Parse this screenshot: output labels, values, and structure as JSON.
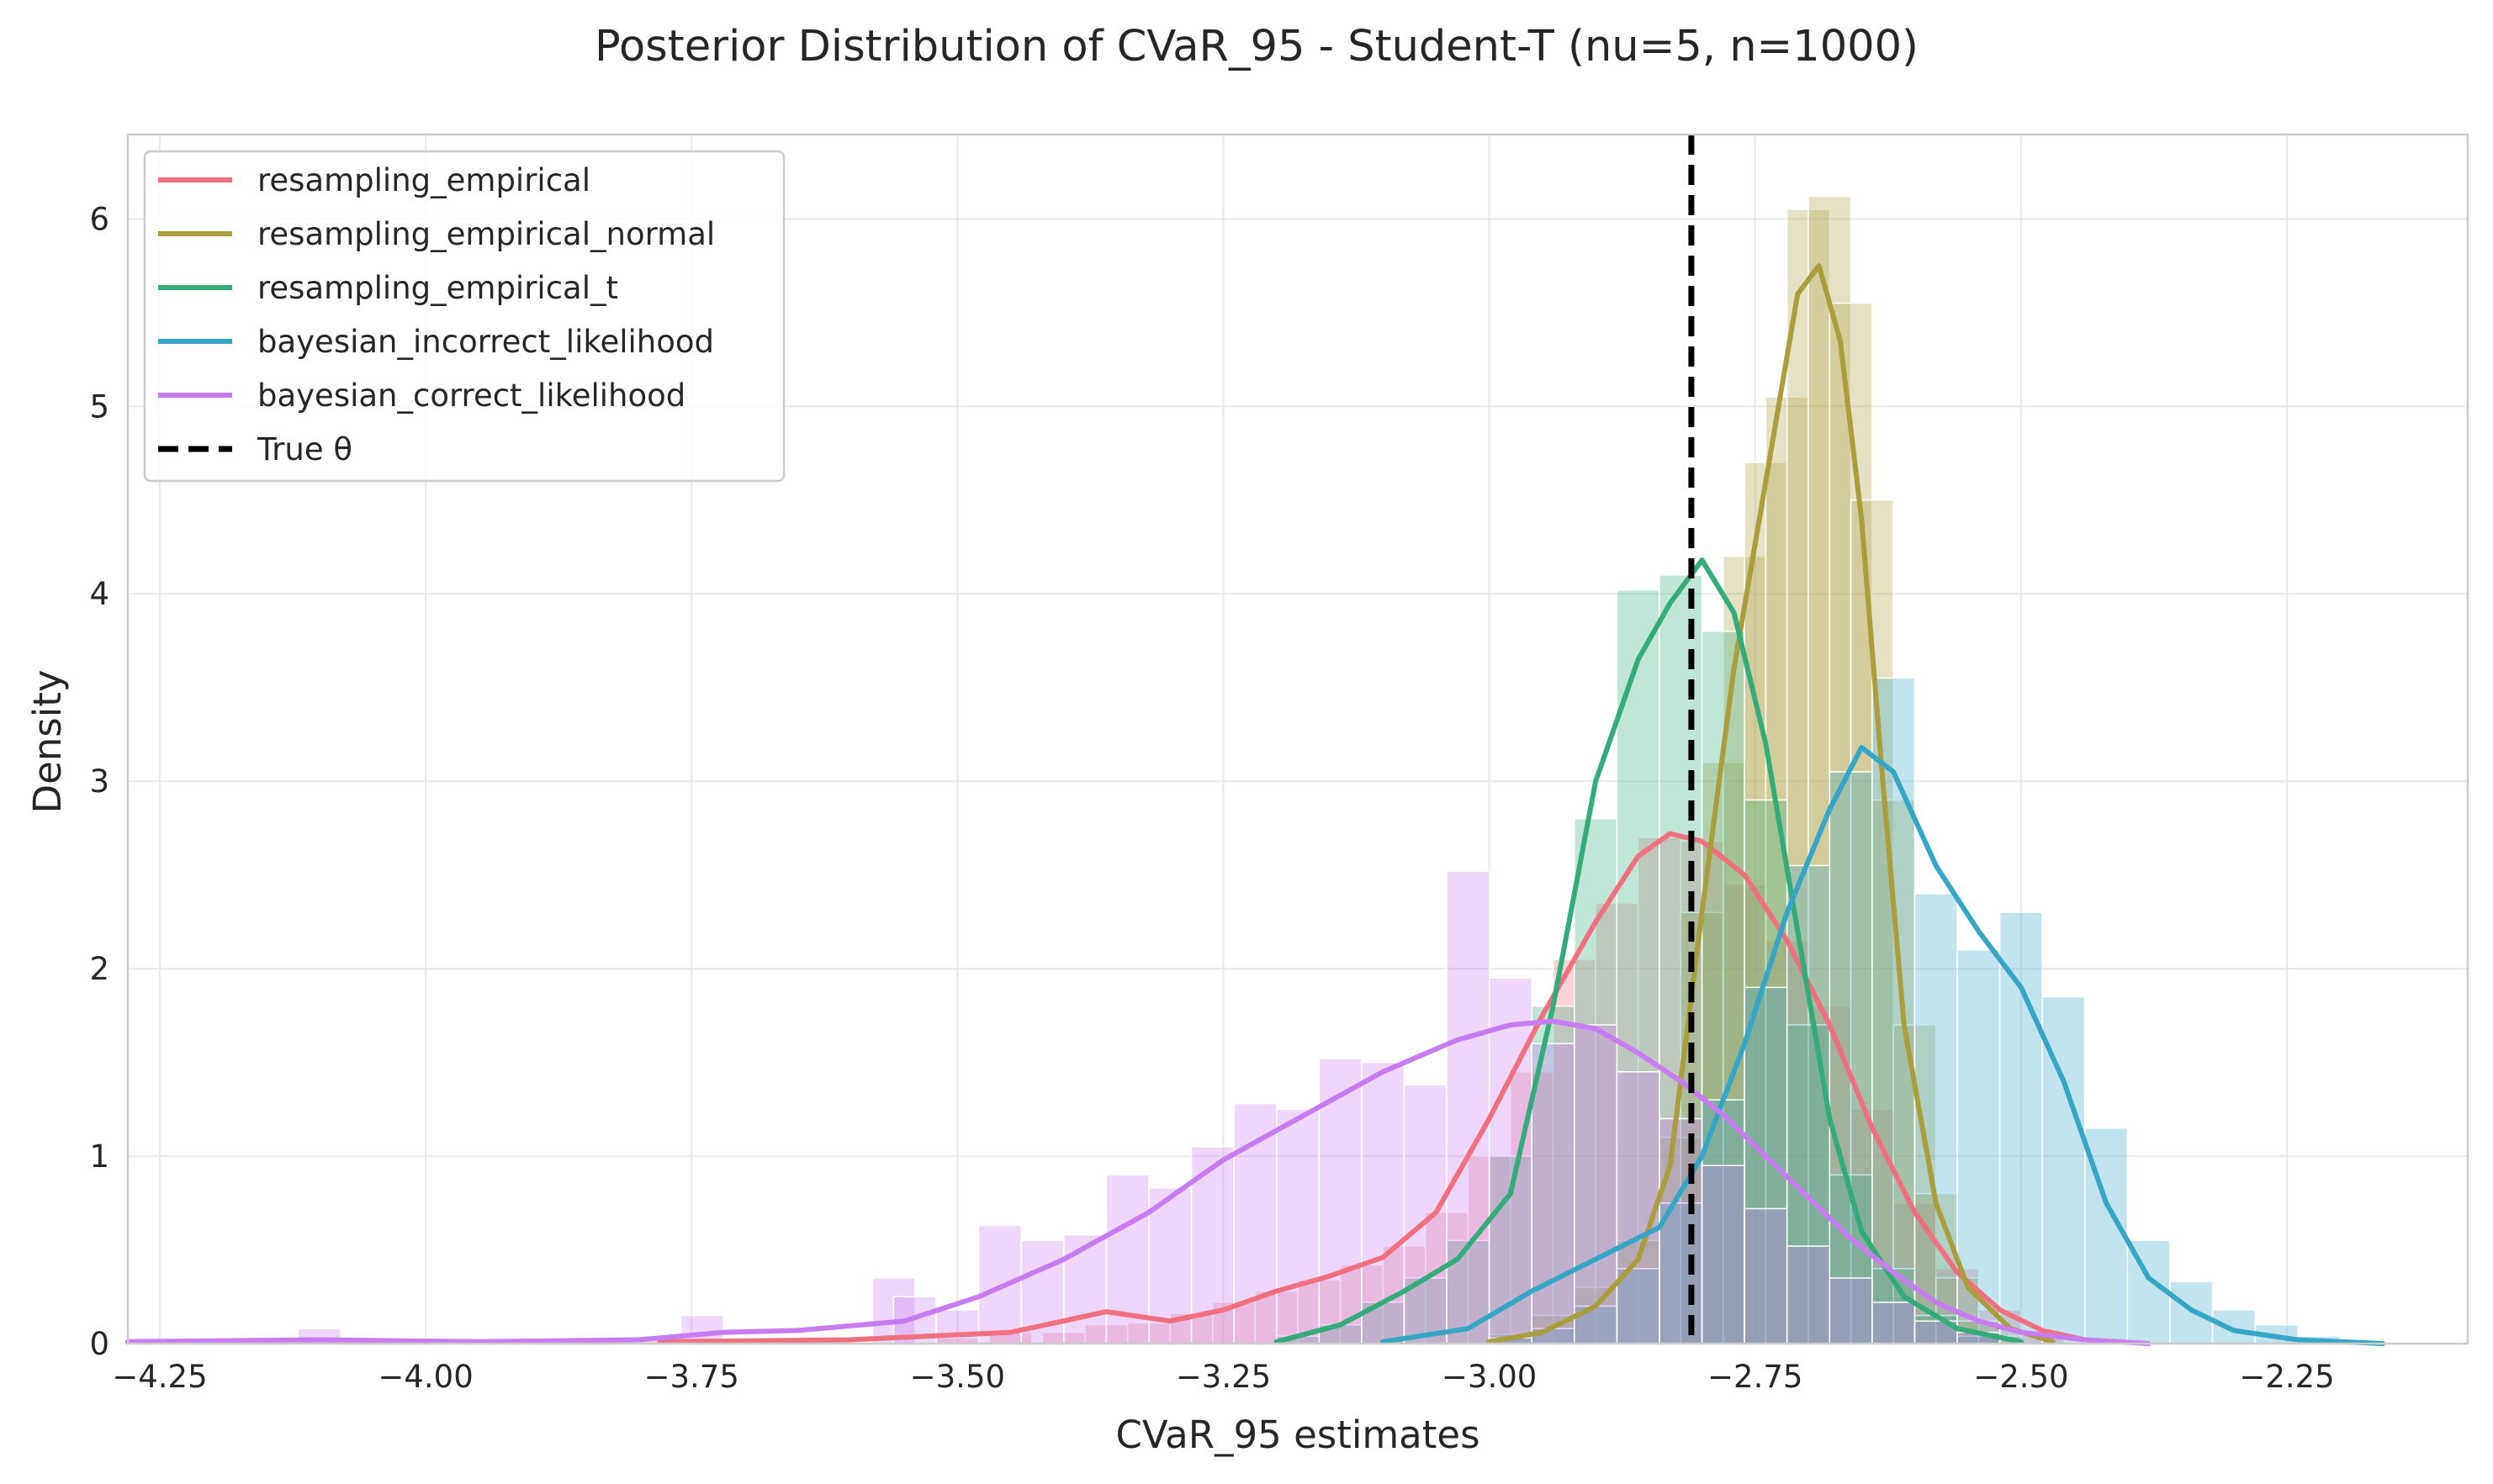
{
  "chart_data": {
    "type": "histogram+kde",
    "title": "Posterior Distribution of CVaR_95 - Student-T (nu=5, n=1000)",
    "xlabel": "CVaR_95 estimates",
    "ylabel": "Density",
    "xlim": [
      -4.28,
      -2.08
    ],
    "ylim": [
      0,
      6.45
    ],
    "xticks": [
      -4.25,
      -4.0,
      -3.75,
      -3.5,
      -3.25,
      -3.0,
      -2.75,
      -2.5,
      -2.25
    ],
    "xtick_labels": [
      "−4.25",
      "−4.00",
      "−3.75",
      "−3.50",
      "−3.25",
      "−3.00",
      "−2.75",
      "−2.50",
      "−2.25"
    ],
    "yticks": [
      0,
      1,
      2,
      3,
      4,
      5,
      6
    ],
    "ytick_labels": [
      "0",
      "1",
      "2",
      "3",
      "4",
      "5",
      "6"
    ],
    "grid": true,
    "legend_position": "upper-left",
    "true_theta": {
      "label": "True θ",
      "x": -2.81,
      "color": "#000000",
      "style": "dashed"
    },
    "series": [
      {
        "name": "resampling_empirical",
        "color": "#f0707f",
        "hist_bins": [
          [
            -3.78,
            0.02
          ],
          [
            -3.5,
            0.03
          ],
          [
            -3.45,
            0.06
          ],
          [
            -3.4,
            0.06
          ],
          [
            -3.36,
            0.1
          ],
          [
            -3.32,
            0.11
          ],
          [
            -3.28,
            0.16
          ],
          [
            -3.24,
            0.22
          ],
          [
            -3.2,
            0.28
          ],
          [
            -3.16,
            0.34
          ],
          [
            -3.12,
            0.42
          ],
          [
            -3.08,
            0.52
          ],
          [
            -3.04,
            0.7
          ],
          [
            -3.0,
            1.0
          ],
          [
            -2.96,
            1.45
          ],
          [
            -2.92,
            2.05
          ],
          [
            -2.88,
            2.35
          ],
          [
            -2.84,
            2.7
          ],
          [
            -2.8,
            2.68
          ],
          [
            -2.76,
            2.45
          ],
          [
            -2.72,
            2.15
          ],
          [
            -2.68,
            1.8
          ],
          [
            -2.64,
            1.25
          ],
          [
            -2.6,
            0.75
          ],
          [
            -2.56,
            0.4
          ],
          [
            -2.52,
            0.18
          ],
          [
            -2.48,
            0.06
          ]
        ],
        "kde": [
          [
            -3.78,
            0.01
          ],
          [
            -3.6,
            0.02
          ],
          [
            -3.45,
            0.06
          ],
          [
            -3.36,
            0.17
          ],
          [
            -3.3,
            0.12
          ],
          [
            -3.25,
            0.18
          ],
          [
            -3.2,
            0.28
          ],
          [
            -3.15,
            0.36
          ],
          [
            -3.1,
            0.46
          ],
          [
            -3.05,
            0.7
          ],
          [
            -3.0,
            1.2
          ],
          [
            -2.95,
            1.75
          ],
          [
            -2.9,
            2.25
          ],
          [
            -2.86,
            2.6
          ],
          [
            -2.83,
            2.72
          ],
          [
            -2.8,
            2.68
          ],
          [
            -2.76,
            2.5
          ],
          [
            -2.72,
            2.15
          ],
          [
            -2.68,
            1.7
          ],
          [
            -2.64,
            1.15
          ],
          [
            -2.6,
            0.7
          ],
          [
            -2.56,
            0.38
          ],
          [
            -2.52,
            0.18
          ],
          [
            -2.48,
            0.07
          ],
          [
            -2.44,
            0.02
          ]
        ]
      },
      {
        "name": "resampling_empirical_normal",
        "color": "#a99d3c",
        "hist_bins": [
          [
            -2.98,
            0.05
          ],
          [
            -2.94,
            0.15
          ],
          [
            -2.9,
            0.3
          ],
          [
            -2.86,
            0.55
          ],
          [
            -2.82,
            1.1
          ],
          [
            -2.8,
            2.3
          ],
          [
            -2.78,
            3.1
          ],
          [
            -2.76,
            4.2
          ],
          [
            -2.74,
            4.7
          ],
          [
            -2.72,
            5.05
          ],
          [
            -2.7,
            6.05
          ],
          [
            -2.68,
            6.12
          ],
          [
            -2.66,
            5.55
          ],
          [
            -2.64,
            4.5
          ],
          [
            -2.62,
            2.9
          ],
          [
            -2.6,
            1.7
          ],
          [
            -2.58,
            0.8
          ],
          [
            -2.56,
            0.35
          ],
          [
            -2.54,
            0.12
          ],
          [
            -2.52,
            0.04
          ]
        ],
        "kde": [
          [
            -3.0,
            0.01
          ],
          [
            -2.95,
            0.06
          ],
          [
            -2.9,
            0.2
          ],
          [
            -2.86,
            0.45
          ],
          [
            -2.83,
            0.95
          ],
          [
            -2.8,
            2.3
          ],
          [
            -2.77,
            3.6
          ],
          [
            -2.74,
            4.6
          ],
          [
            -2.71,
            5.6
          ],
          [
            -2.69,
            5.75
          ],
          [
            -2.67,
            5.35
          ],
          [
            -2.65,
            4.4
          ],
          [
            -2.63,
            3.0
          ],
          [
            -2.61,
            1.7
          ],
          [
            -2.58,
            0.75
          ],
          [
            -2.55,
            0.3
          ],
          [
            -2.51,
            0.08
          ],
          [
            -2.47,
            0.01
          ]
        ]
      },
      {
        "name": "resampling_empirical_t",
        "color": "#33ac7a",
        "hist_bins": [
          [
            -3.18,
            0.04
          ],
          [
            -3.14,
            0.1
          ],
          [
            -3.1,
            0.22
          ],
          [
            -3.06,
            0.35
          ],
          [
            -3.02,
            0.55
          ],
          [
            -2.98,
            1.0
          ],
          [
            -2.94,
            1.8
          ],
          [
            -2.9,
            2.8
          ],
          [
            -2.86,
            4.02
          ],
          [
            -2.82,
            4.1
          ],
          [
            -2.78,
            3.8
          ],
          [
            -2.74,
            2.9
          ],
          [
            -2.7,
            1.7
          ],
          [
            -2.66,
            0.9
          ],
          [
            -2.62,
            0.4
          ],
          [
            -2.58,
            0.15
          ],
          [
            -2.54,
            0.04
          ]
        ],
        "kde": [
          [
            -3.2,
            0.01
          ],
          [
            -3.14,
            0.1
          ],
          [
            -3.08,
            0.28
          ],
          [
            -3.03,
            0.45
          ],
          [
            -2.98,
            0.8
          ],
          [
            -2.94,
            1.8
          ],
          [
            -2.9,
            3.0
          ],
          [
            -2.86,
            3.65
          ],
          [
            -2.83,
            3.95
          ],
          [
            -2.8,
            4.18
          ],
          [
            -2.77,
            3.9
          ],
          [
            -2.74,
            3.2
          ],
          [
            -2.71,
            2.2
          ],
          [
            -2.68,
            1.2
          ],
          [
            -2.65,
            0.6
          ],
          [
            -2.61,
            0.25
          ],
          [
            -2.56,
            0.08
          ],
          [
            -2.5,
            0.01
          ]
        ]
      },
      {
        "name": "bayesian_incorrect_likelihood",
        "color": "#36a6c6",
        "hist_bins": [
          [
            -2.98,
            0.03
          ],
          [
            -2.94,
            0.08
          ],
          [
            -2.9,
            0.2
          ],
          [
            -2.86,
            0.4
          ],
          [
            -2.82,
            0.75
          ],
          [
            -2.78,
            1.3
          ],
          [
            -2.74,
            1.9
          ],
          [
            -2.7,
            2.55
          ],
          [
            -2.66,
            3.05
          ],
          [
            -2.62,
            3.55
          ],
          [
            -2.58,
            2.4
          ],
          [
            -2.54,
            2.1
          ],
          [
            -2.5,
            2.3
          ],
          [
            -2.46,
            1.85
          ],
          [
            -2.42,
            1.15
          ],
          [
            -2.38,
            0.55
          ],
          [
            -2.34,
            0.33
          ],
          [
            -2.3,
            0.18
          ],
          [
            -2.26,
            0.1
          ],
          [
            -2.22,
            0.04
          ]
        ],
        "kde": [
          [
            -3.1,
            0.01
          ],
          [
            -3.02,
            0.08
          ],
          [
            -2.96,
            0.28
          ],
          [
            -2.9,
            0.45
          ],
          [
            -2.84,
            0.62
          ],
          [
            -2.8,
            1.0
          ],
          [
            -2.76,
            1.6
          ],
          [
            -2.72,
            2.3
          ],
          [
            -2.68,
            2.85
          ],
          [
            -2.65,
            3.18
          ],
          [
            -2.62,
            3.05
          ],
          [
            -2.58,
            2.55
          ],
          [
            -2.54,
            2.2
          ],
          [
            -2.5,
            1.9
          ],
          [
            -2.46,
            1.4
          ],
          [
            -2.42,
            0.75
          ],
          [
            -2.38,
            0.35
          ],
          [
            -2.34,
            0.18
          ],
          [
            -2.3,
            0.07
          ],
          [
            -2.24,
            0.02
          ],
          [
            -2.16,
            0.0
          ]
        ]
      },
      {
        "name": "bayesian_correct_likelihood",
        "color": "#c77cf1",
        "hist_bins": [
          [
            -4.1,
            0.08
          ],
          [
            -3.74,
            0.15
          ],
          [
            -3.56,
            0.35
          ],
          [
            -3.54,
            0.25
          ],
          [
            -3.5,
            0.18
          ],
          [
            -3.46,
            0.63
          ],
          [
            -3.42,
            0.55
          ],
          [
            -3.38,
            0.58
          ],
          [
            -3.34,
            0.9
          ],
          [
            -3.3,
            0.83
          ],
          [
            -3.26,
            1.05
          ],
          [
            -3.22,
            1.28
          ],
          [
            -3.18,
            1.25
          ],
          [
            -3.14,
            1.52
          ],
          [
            -3.1,
            1.5
          ],
          [
            -3.06,
            1.38
          ],
          [
            -3.02,
            2.52
          ],
          [
            -2.98,
            1.95
          ],
          [
            -2.94,
            1.6
          ],
          [
            -2.9,
            1.7
          ],
          [
            -2.86,
            1.45
          ],
          [
            -2.82,
            1.2
          ],
          [
            -2.78,
            0.95
          ],
          [
            -2.74,
            0.72
          ],
          [
            -2.7,
            0.52
          ],
          [
            -2.66,
            0.35
          ],
          [
            -2.62,
            0.22
          ],
          [
            -2.58,
            0.12
          ],
          [
            -2.54,
            0.06
          ]
        ],
        "kde": [
          [
            -4.28,
            0.01
          ],
          [
            -4.1,
            0.02
          ],
          [
            -3.95,
            0.01
          ],
          [
            -3.8,
            0.02
          ],
          [
            -3.72,
            0.06
          ],
          [
            -3.65,
            0.07
          ],
          [
            -3.55,
            0.12
          ],
          [
            -3.48,
            0.25
          ],
          [
            -3.4,
            0.45
          ],
          [
            -3.32,
            0.7
          ],
          [
            -3.25,
            0.98
          ],
          [
            -3.18,
            1.2
          ],
          [
            -3.1,
            1.45
          ],
          [
            -3.03,
            1.62
          ],
          [
            -2.98,
            1.7
          ],
          [
            -2.94,
            1.72
          ],
          [
            -2.9,
            1.68
          ],
          [
            -2.86,
            1.55
          ],
          [
            -2.82,
            1.4
          ],
          [
            -2.78,
            1.22
          ],
          [
            -2.74,
            1.0
          ],
          [
            -2.7,
            0.78
          ],
          [
            -2.66,
            0.56
          ],
          [
            -2.62,
            0.38
          ],
          [
            -2.58,
            0.22
          ],
          [
            -2.54,
            0.12
          ],
          [
            -2.5,
            0.06
          ],
          [
            -2.44,
            0.02
          ],
          [
            -2.38,
            0.0
          ]
        ]
      }
    ]
  }
}
